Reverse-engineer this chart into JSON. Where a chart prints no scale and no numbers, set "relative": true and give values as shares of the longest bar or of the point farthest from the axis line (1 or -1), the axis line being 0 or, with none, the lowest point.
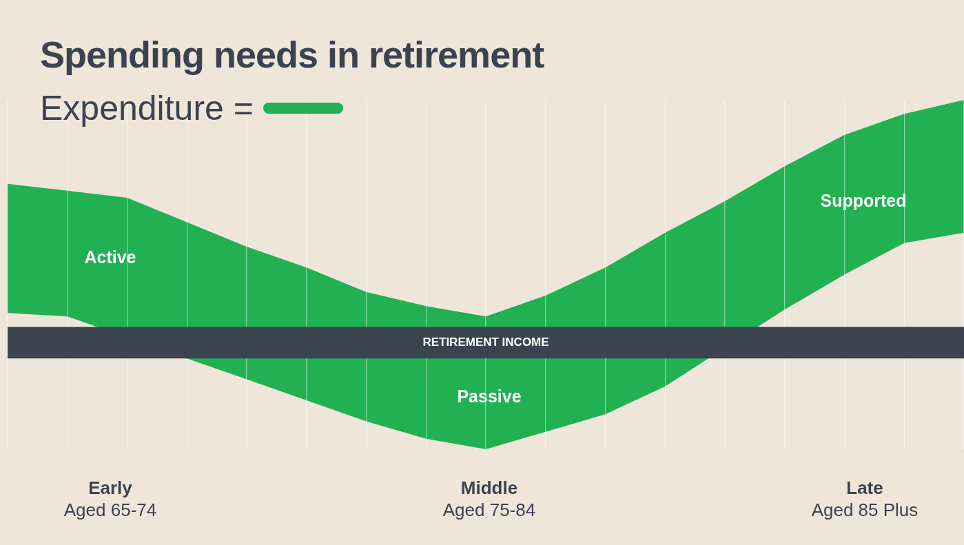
{
  "chart_data": {
    "type": "area",
    "title": "Spending needs in retirement",
    "relative": true,
    "grid": "x",
    "legend": "top left",
    "categories": [
      null,
      null,
      null,
      null,
      null,
      null,
      null,
      null,
      null,
      null,
      null,
      null,
      null,
      null,
      null,
      null,
      null
    ],
    "series": [
      {
        "color": "#efe6da",
        "values": [
          0.39,
          0.38,
          null,
          0.26,
          0.2,
          0.14,
          0.08,
          0.03,
          0,
          0.05,
          0.1,
          0.18,
          null,
          0.4,
          0.5,
          0.59,
          0.62
        ]
      },
      {
        "name": "Expenditure =",
        "color": "#22b152",
        "values": [
          0.76,
          0.74,
          0.72,
          0.65,
          0.58,
          0.52,
          0.45,
          0.41,
          0.38,
          0.44,
          0.52,
          0.62,
          0.71,
          0.81,
          0.9,
          0.96,
          1
        ]
      }
    ],
    "bands": [
      {
        "axis": "y",
        "from": 0.26,
        "to": 0.35,
        "label": "RETIREMENT INCOME",
        "color": "#3b4350"
      }
    ],
    "annotations": [
      "Active",
      "Passive",
      "Supported",
      "Early",
      "Aged 65-74",
      "Middle",
      "Aged 75-84",
      "Late",
      "Aged 85 Plus"
    ]
  }
}
